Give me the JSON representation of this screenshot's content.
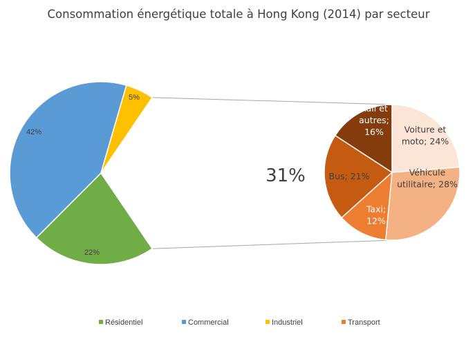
{
  "chart_data": [
    {
      "type": "pie",
      "title": "Consommation énergétique totale à Hong Kong (2014) par secteur",
      "categories": [
        "Résidentiel",
        "Commercial",
        "Industriel",
        "Transport"
      ],
      "values": [
        22,
        42,
        5,
        31
      ],
      "value_labels": [
        "22%",
        "42%",
        "5%",
        "31%"
      ],
      "colors": [
        "#70ad47",
        "#5b9bd5",
        "#ffc000",
        "#ed7d31"
      ],
      "exploded_category": "Transport",
      "legend_position": "bottom"
    },
    {
      "type": "pie",
      "title": "",
      "parent_category": "Transport",
      "categories": [
        "Voiture et moto",
        "Véhicule utilitaire",
        "Taxi",
        "Bus",
        "Rail et autres"
      ],
      "values": [
        24,
        28,
        12,
        21,
        16
      ],
      "labels": [
        [
          "Voiture et",
          "moto; 24%"
        ],
        [
          "Véhicule",
          "utilitaire; 28%"
        ],
        [
          "Taxi;",
          "12%"
        ],
        [
          "Bus; 21%"
        ],
        [
          "Rail et",
          "autres;",
          "16%"
        ]
      ],
      "colors": [
        "#fbe5d6",
        "#f4b183",
        "#ed7d31",
        "#c55a11",
        "#843c0c"
      ],
      "label_colors": [
        "#404040",
        "#404040",
        "#ffffff",
        "#404040",
        "#ffffff"
      ]
    }
  ]
}
